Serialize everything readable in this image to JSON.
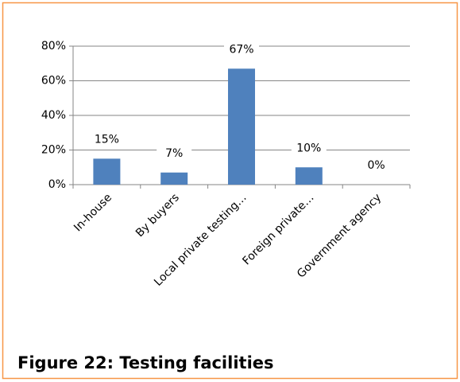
{
  "chart_data": {
    "type": "bar",
    "caption": "Figure 22: Testing facilities",
    "categories": [
      "In-house",
      "By buyers",
      "Local private testing…",
      "Foreign private…",
      "Government agency"
    ],
    "values": [
      15,
      7,
      67,
      10,
      0
    ],
    "value_labels": [
      "15%",
      "7%",
      "67%",
      "10%",
      "0%"
    ],
    "color": "#4f81bd",
    "ylim": [
      0,
      80
    ],
    "yticks": [
      {
        "value": 0,
        "label": "0%"
      },
      {
        "value": 20,
        "label": "20%"
      },
      {
        "value": 40,
        "label": "40%"
      },
      {
        "value": 60,
        "label": "60%"
      },
      {
        "value": 80,
        "label": "80%"
      }
    ],
    "grid": true
  }
}
